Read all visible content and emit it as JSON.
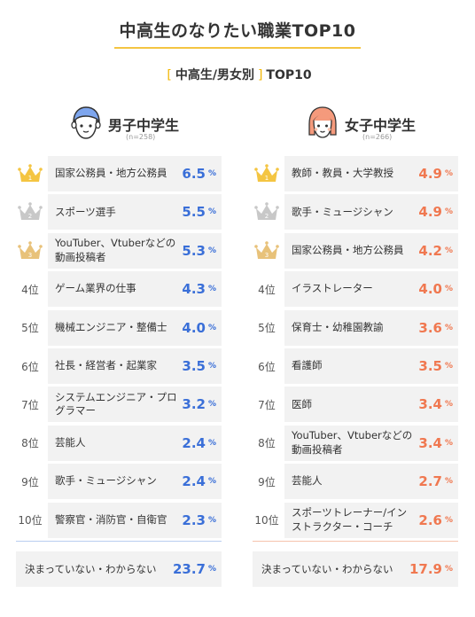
{
  "page": {
    "title": "中高生のなりたい職業TOP10",
    "subtitle_open": "[",
    "subtitle": "中高生/男女別",
    "subtitle_close": "]",
    "subtitle_suffix": "TOP10"
  },
  "colors": {
    "boys": "#3a6fd8",
    "girls": "#f07850",
    "gold": "#f4c542",
    "silver": "#c8c8c8",
    "bronze": "#e8c27a",
    "accent": "#f2b600"
  },
  "boys": {
    "label": "男子中学生",
    "n": "(n=258)",
    "icon": "boy-avatar-icon",
    "rows": [
      {
        "rank": "1",
        "rank_icon": "gold-crown-icon",
        "job": "国家公務員・地方公務員",
        "value": "6.5",
        "unit": "%"
      },
      {
        "rank": "2",
        "rank_icon": "silver-crown-icon",
        "job": "スポーツ選手",
        "value": "5.5",
        "unit": "%"
      },
      {
        "rank": "3",
        "rank_icon": "bronze-crown-icon",
        "job": "YouTuber、Vtuberなどの動画投稿者",
        "value": "5.3",
        "unit": "%"
      },
      {
        "rank": "4位",
        "job": "ゲーム業界の仕事",
        "value": "4.3",
        "unit": "%"
      },
      {
        "rank": "5位",
        "job": "機械エンジニア・整備士",
        "value": "4.0",
        "unit": "%"
      },
      {
        "rank": "6位",
        "job": "社長・経営者・起業家",
        "value": "3.5",
        "unit": "%"
      },
      {
        "rank": "7位",
        "job": "システムエンジニア・プログラマー",
        "value": "3.2",
        "unit": "%"
      },
      {
        "rank": "8位",
        "job": "芸能人",
        "value": "2.4",
        "unit": "%"
      },
      {
        "rank": "9位",
        "job": "歌手・ミュージシャン",
        "value": "2.4",
        "unit": "%"
      },
      {
        "rank": "10位",
        "job": "警察官・消防官・自衛官",
        "value": "2.3",
        "unit": "%"
      }
    ],
    "undecided": {
      "label": "決まっていない・わからない",
      "value": "23.7",
      "unit": "%"
    }
  },
  "girls": {
    "label": "女子中学生",
    "n": "(n=266)",
    "icon": "girl-avatar-icon",
    "rows": [
      {
        "rank": "1",
        "rank_icon": "gold-crown-icon",
        "job": "教師・教員・大学教授",
        "value": "4.9",
        "unit": "%"
      },
      {
        "rank": "2",
        "rank_icon": "silver-crown-icon",
        "job": "歌手・ミュージシャン",
        "value": "4.9",
        "unit": "%"
      },
      {
        "rank": "3",
        "rank_icon": "bronze-crown-icon",
        "job": "国家公務員・地方公務員",
        "value": "4.2",
        "unit": "%"
      },
      {
        "rank": "4位",
        "job": "イラストレーター",
        "value": "4.0",
        "unit": "%"
      },
      {
        "rank": "5位",
        "job": "保育士・幼稚園教諭",
        "value": "3.6",
        "unit": "%"
      },
      {
        "rank": "6位",
        "job": "看護師",
        "value": "3.5",
        "unit": "%"
      },
      {
        "rank": "7位",
        "job": "医師",
        "value": "3.4",
        "unit": "%"
      },
      {
        "rank": "8位",
        "job": "YouTuber、Vtuberなどの動画投稿者",
        "value": "3.4",
        "unit": "%"
      },
      {
        "rank": "9位",
        "job": "芸能人",
        "value": "2.7",
        "unit": "%"
      },
      {
        "rank": "10位",
        "job": "スポーツトレーナー/インストラクター・コーチ",
        "value": "2.6",
        "unit": "%"
      }
    ],
    "undecided": {
      "label": "決まっていない・わからない",
      "value": "17.9",
      "unit": "%"
    }
  },
  "chart_data": [
    {
      "type": "table",
      "title": "中高生のなりたい職業TOP10",
      "subtitle": "中高生/男女別 TOP10",
      "group": "男子中学生",
      "n": "(n=258)",
      "unit": "%",
      "categories": [
        "国家公務員・地方公務員",
        "スポーツ選手",
        "YouTuber、Vtuberなどの動画投稿者",
        "ゲーム業界の仕事",
        "機械エンジニア・整備士",
        "社長・経営者・起業家",
        "システムエンジニア・プログラマー",
        "芸能人",
        "歌手・ミュージシャン",
        "警察官・消防官・自衛官",
        "決まっていない・わからない"
      ],
      "values": [
        6.5,
        5.5,
        5.3,
        4.3,
        4.0,
        3.5,
        3.2,
        2.4,
        2.4,
        2.3,
        23.7
      ]
    },
    {
      "type": "table",
      "title": "中高生のなりたい職業TOP10",
      "subtitle": "中高生/男女別 TOP10",
      "group": "女子中学生",
      "n": "(n=266)",
      "unit": "%",
      "categories": [
        "教師・教員・大学教授",
        "歌手・ミュージシャン",
        "国家公務員・地方公務員",
        "イラストレーター",
        "保育士・幼稚園教諭",
        "看護師",
        "医師",
        "YouTuber、Vtuberなどの動画投稿者",
        "芸能人",
        "スポーツトレーナー/インストラクター・コーチ",
        "決まっていない・わからない"
      ],
      "values": [
        4.9,
        4.9,
        4.2,
        4.0,
        3.6,
        3.5,
        3.4,
        3.4,
        2.7,
        2.6,
        17.9
      ]
    }
  ]
}
